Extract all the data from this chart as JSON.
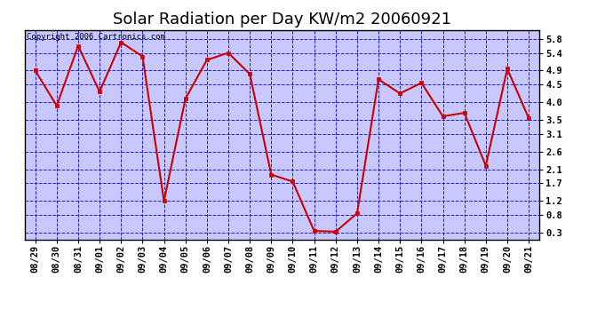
{
  "title": "Solar Radiation per Day KW/m2 20060921",
  "copyright": "Copyright 2006 Cartronics.com",
  "dates": [
    "08/29",
    "08/30",
    "08/31",
    "09/01",
    "09/02",
    "09/03",
    "09/04",
    "09/05",
    "09/06",
    "09/07",
    "09/08",
    "09/09",
    "09/10",
    "09/11",
    "09/12",
    "09/13",
    "09/14",
    "09/15",
    "09/16",
    "09/17",
    "09/18",
    "09/19",
    "09/20",
    "09/21"
  ],
  "values": [
    4.9,
    3.9,
    5.6,
    4.3,
    5.7,
    5.3,
    1.2,
    4.1,
    5.2,
    5.4,
    4.8,
    1.95,
    1.75,
    0.35,
    0.33,
    0.85,
    4.65,
    4.25,
    4.55,
    3.6,
    3.7,
    2.2,
    4.95,
    3.55
  ],
  "line_color": "#cc0000",
  "marker_color": "#cc0000",
  "outer_bg_color": "#ffffff",
  "plot_bg_color": "#c8c8ff",
  "grid_color": "#0000cc",
  "yticks": [
    0.3,
    0.8,
    1.2,
    1.7,
    2.1,
    2.6,
    3.1,
    3.5,
    4.0,
    4.5,
    4.9,
    5.4,
    5.8
  ],
  "ymin": 0.1,
  "ymax": 6.05,
  "title_fontsize": 13,
  "tick_fontsize": 7.5,
  "copyright_fontsize": 6.5
}
